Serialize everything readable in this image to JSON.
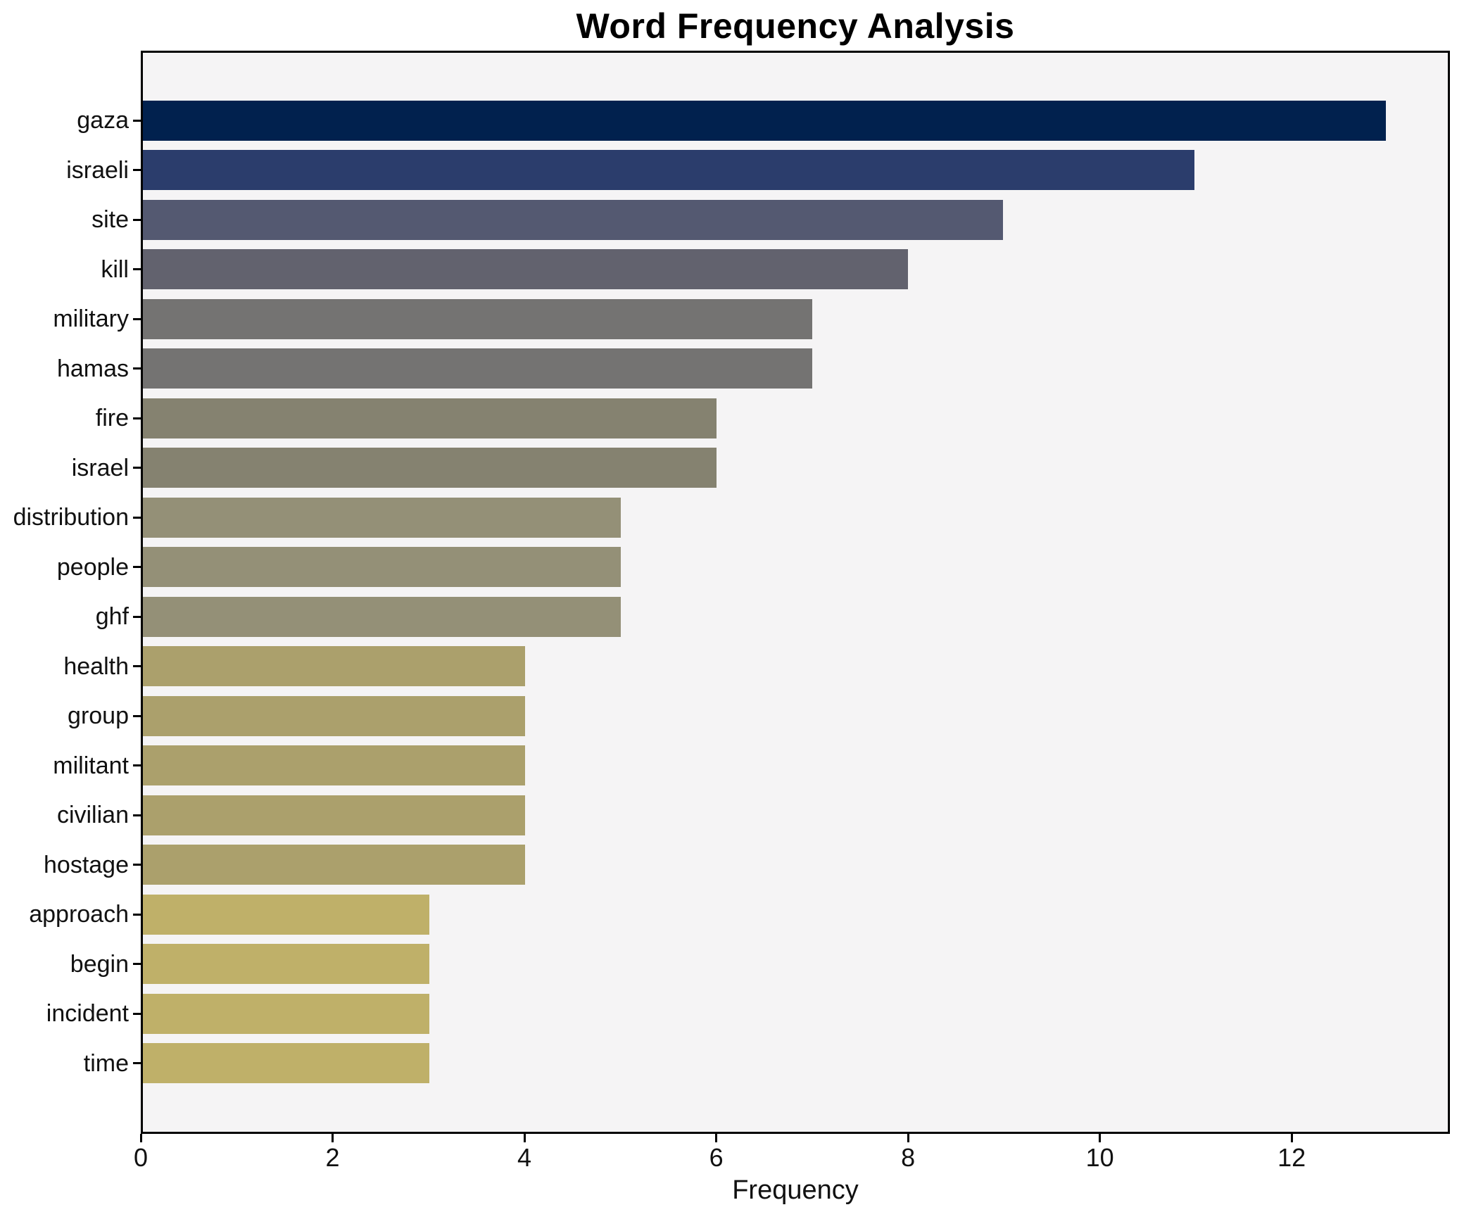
{
  "chart_data": {
    "type": "bar",
    "orientation": "horizontal",
    "title": "Word Frequency Analysis",
    "xlabel": "Frequency",
    "ylabel": "",
    "categories": [
      "gaza",
      "israeli",
      "site",
      "kill",
      "military",
      "hamas",
      "fire",
      "israel",
      "distribution",
      "people",
      "ghf",
      "health",
      "group",
      "militant",
      "civilian",
      "hostage",
      "approach",
      "begin",
      "incident",
      "time"
    ],
    "values": [
      13,
      11,
      9,
      8,
      7,
      7,
      6,
      6,
      5,
      5,
      5,
      4,
      4,
      4,
      4,
      4,
      3,
      3,
      3,
      3
    ],
    "bar_colors": [
      "#01214e",
      "#2b3d6c",
      "#545971",
      "#62626e",
      "#747372",
      "#747372",
      "#858270",
      "#858270",
      "#949077",
      "#949077",
      "#949077",
      "#aba06c",
      "#aba06c",
      "#aba06c",
      "#aba06c",
      "#aba06c",
      "#bfb069",
      "#bfb069",
      "#bfb069",
      "#bfb069"
    ],
    "x_ticks": [
      0,
      2,
      4,
      6,
      8,
      10,
      12
    ],
    "xlim": [
      0,
      13.65
    ],
    "grid": false,
    "legend": "none",
    "plot_bg": "#f5f4f5",
    "figure_bg": "#ffffff",
    "spine_color": "#000000",
    "bar_height_fraction": 0.8
  }
}
